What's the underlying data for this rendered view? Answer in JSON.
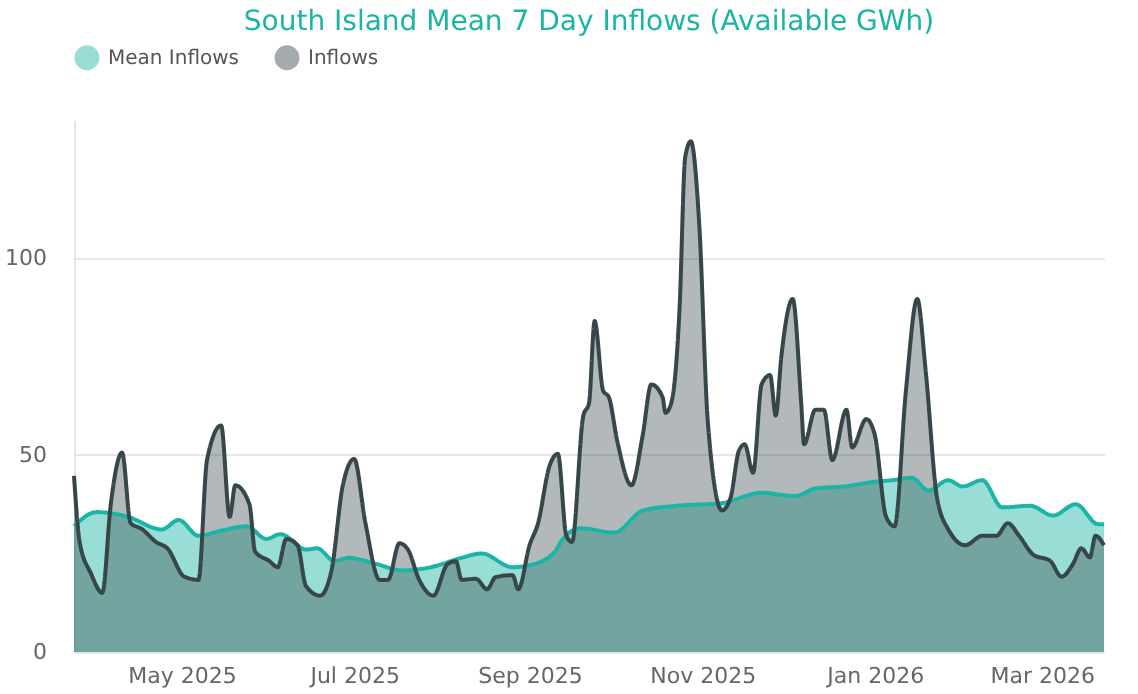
{
  "chart_data": {
    "type": "area",
    "title": "South Island Mean 7 Day Inflows (Available GWh)",
    "xlim": [
      "2025-03-24",
      "2026-03-23"
    ],
    "ylim": [
      0,
      135
    ],
    "yticks": [
      0,
      50,
      100
    ],
    "xticks": [
      {
        "value": "2025-05-01",
        "label": "May 2025"
      },
      {
        "value": "2025-07-01",
        "label": "Jul 2025"
      },
      {
        "value": "2025-09-01",
        "label": "Sep 2025"
      },
      {
        "value": "2025-11-01",
        "label": "Nov 2025"
      },
      {
        "value": "2026-01-01",
        "label": "Jan 2026"
      },
      {
        "value": "2026-03-01",
        "label": "Mar 2026"
      }
    ],
    "grid": "y",
    "legend": "top left",
    "marker": "none",
    "line_style": "solid",
    "series": [
      {
        "name": "Mean Inflows",
        "color": "#1ab5a5",
        "x": [
          "2025-03-24",
          "2025-04-01",
          "2025-04-12",
          "2025-04-24",
          "2025-04-30",
          "2025-05-07",
          "2025-05-15",
          "2025-05-24",
          "2025-05-31",
          "2025-06-05",
          "2025-06-14",
          "2025-06-18",
          "2025-06-24",
          "2025-06-29",
          "2025-07-09",
          "2025-07-18",
          "2025-07-28",
          "2025-08-08",
          "2025-08-15",
          "2025-08-26",
          "2025-09-01",
          "2025-09-10",
          "2025-09-12",
          "2025-09-19",
          "2025-10-01",
          "2025-10-11",
          "2025-10-23",
          "2025-11-08",
          "2025-11-22",
          "2025-12-04",
          "2025-12-11",
          "2025-12-21",
          "2025-12-31",
          "2026-01-07",
          "2026-01-14",
          "2026-01-20",
          "2026-01-27",
          "2026-02-01",
          "2026-02-08",
          "2026-02-15",
          "2026-02-25",
          "2026-03-05",
          "2026-03-13",
          "2026-03-21",
          "2026-03-23"
        ],
        "values": [
          31.9,
          35.5,
          34.3,
          31.1,
          33.5,
          29.5,
          30.8,
          31.9,
          28.7,
          29.9,
          26,
          26.3,
          23.1,
          23.9,
          22.3,
          20.7,
          21.5,
          23.9,
          25,
          21.5,
          22,
          25.5,
          27.9,
          31.4,
          30.3,
          35.9,
          37.1,
          37.8,
          40.4,
          39.6,
          41.5,
          42,
          43.1,
          43.6,
          44.2,
          41,
          43.6,
          42,
          43.6,
          36.7,
          37.1,
          34.6,
          37.5,
          32.4,
          32.4
        ]
      },
      {
        "name": "Inflows",
        "color": "#374649",
        "x": [
          "2025-03-24",
          "2025-03-26",
          "2025-03-30",
          "2025-04-03",
          "2025-04-06",
          "2025-04-10",
          "2025-04-13",
          "2025-04-17",
          "2025-04-22",
          "2025-04-26",
          "2025-05-02",
          "2025-05-07",
          "2025-05-10",
          "2025-05-15",
          "2025-05-18",
          "2025-05-20",
          "2025-05-25",
          "2025-05-27",
          "2025-06-01",
          "2025-06-04",
          "2025-06-07",
          "2025-06-11",
          "2025-06-14",
          "2025-06-19",
          "2025-06-23",
          "2025-06-27",
          "2025-07-01",
          "2025-07-05",
          "2025-07-10",
          "2025-07-13",
          "2025-07-17",
          "2025-07-20",
          "2025-07-24",
          "2025-07-29",
          "2025-08-03",
          "2025-08-06",
          "2025-08-08",
          "2025-08-13",
          "2025-08-17",
          "2025-08-20",
          "2025-08-26",
          "2025-08-28",
          "2025-09-01",
          "2025-09-04",
          "2025-09-08",
          "2025-09-11",
          "2025-09-14",
          "2025-09-16",
          "2025-09-20",
          "2025-09-22",
          "2025-09-24",
          "2025-09-27",
          "2025-09-29",
          "2025-10-02",
          "2025-10-07",
          "2025-10-11",
          "2025-10-14",
          "2025-10-18",
          "2025-10-19",
          "2025-10-21",
          "2025-10-24",
          "2025-10-26",
          "2025-10-28",
          "2025-10-31",
          "2025-11-03",
          "2025-11-08",
          "2025-11-11",
          "2025-11-14",
          "2025-11-16",
          "2025-11-19",
          "2025-11-22",
          "2025-11-25",
          "2025-11-27",
          "2025-11-29",
          "2025-12-03",
          "2025-12-06",
          "2025-12-07",
          "2025-12-11",
          "2025-12-14",
          "2025-12-17",
          "2025-12-22",
          "2025-12-24",
          "2025-12-29",
          "2026-01-01",
          "2026-01-05",
          "2026-01-08",
          "2026-01-12",
          "2026-01-16",
          "2026-01-19",
          "2026-01-23",
          "2026-01-27",
          "2026-02-02",
          "2026-02-08",
          "2026-02-13",
          "2026-02-17",
          "2026-02-21",
          "2026-02-26",
          "2026-03-04",
          "2026-03-08",
          "2026-03-12",
          "2026-03-15",
          "2026-03-18",
          "2026-03-20",
          "2026-03-23"
        ],
        "values": [
          44.7,
          27.9,
          19.9,
          15,
          37.5,
          50.6,
          32.7,
          31.2,
          27.9,
          26.3,
          19.1,
          18.3,
          48.7,
          57.5,
          34.3,
          42.3,
          37.5,
          25.5,
          23.1,
          21.5,
          28.7,
          27.1,
          16.7,
          14.3,
          20.7,
          42.3,
          49,
          32.7,
          18.3,
          18.3,
          27.6,
          26,
          18.3,
          14.3,
          22.3,
          23,
          18.3,
          18.6,
          15.9,
          19,
          19.5,
          15.9,
          27.1,
          32.7,
          47.1,
          50.3,
          29.5,
          27.9,
          60,
          63.1,
          84,
          66.3,
          64.7,
          53.5,
          42.3,
          55.1,
          67.9,
          64.7,
          60.7,
          63,
          87.2,
          125.6,
          129.6,
          108,
          58.3,
          35.9,
          39.1,
          51.1,
          52.7,
          45.5,
          67.9,
          70.3,
          60,
          75.2,
          89.6,
          63.1,
          52.7,
          61.5,
          61.5,
          48.7,
          61.5,
          51.9,
          59.1,
          55.1,
          34.3,
          31.9,
          66.3,
          89.6,
          71.2,
          39.1,
          31.1,
          27.1,
          29.5,
          29.5,
          32.7,
          29.5,
          24.7,
          23.1,
          19.1,
          22.3,
          26.3,
          24,
          29.5,
          27.1
        ]
      }
    ]
  }
}
